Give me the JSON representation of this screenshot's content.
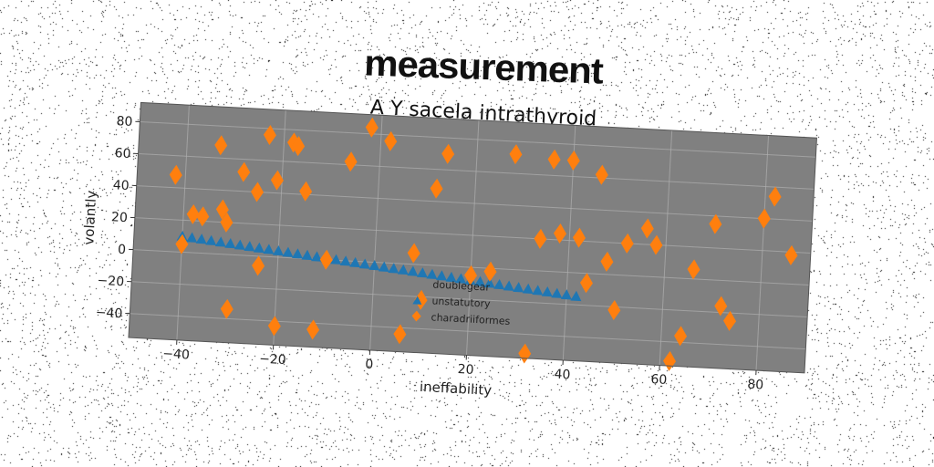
{
  "title": "measurement",
  "subtitle": "A Y sacela intrathyroid",
  "colors": {
    "plot_bg": "#808080",
    "grid": "#b0b0b0",
    "series_blue": "#1f77b4",
    "series_orange": "#ff7f0e",
    "text": "#222222"
  },
  "chart_data": {
    "type": "scatter",
    "xlabel": "ineffability",
    "ylabel": "volantly",
    "xlim": [
      -50,
      90
    ],
    "ylim": [
      -55,
      92
    ],
    "xticks": [
      "-40",
      "-20",
      "0",
      "20",
      "40",
      "60",
      "80"
    ],
    "yticks": [
      "-40",
      "-20",
      "0",
      "20",
      "40",
      "60",
      "80"
    ],
    "grid": true,
    "legend_position": "lower center",
    "series": [
      {
        "name": "doublegear",
        "marker": "none",
        "x": [],
        "y": []
      },
      {
        "name": "unstatutory",
        "marker": "triangle",
        "color": "#1f77b4",
        "x": [
          -40,
          -38,
          -36,
          -34,
          -32,
          -30,
          -28,
          -26,
          -24,
          -22,
          -20,
          -18,
          -16,
          -14,
          -12,
          -10,
          -8,
          -6,
          -4,
          -2,
          0,
          2,
          4,
          6,
          8,
          10,
          12,
          14,
          16,
          18,
          20,
          22,
          24,
          26,
          28,
          30,
          32,
          34,
          36,
          38,
          40,
          42
        ],
        "y": [
          10,
          9.4,
          8.8,
          8.2,
          7.6,
          7,
          6.4,
          5.8,
          5.2,
          4.6,
          4,
          3.4,
          2.8,
          2.2,
          1.6,
          1,
          0.4,
          -0.2,
          -0.8,
          -1.4,
          -2,
          -2.6,
          -3.2,
          -3.8,
          -4.4,
          -5,
          -5.6,
          -6.2,
          -6.8,
          -7.4,
          -8,
          -8.6,
          -9.2,
          -9.8,
          -10.4,
          -11,
          -11.6,
          -12.2,
          -12.8,
          -13.4,
          -14,
          -14.6
        ]
      },
      {
        "name": "charadriiformes",
        "marker": "diamond",
        "color": "#ff7f0e",
        "x": [
          -42,
          -40,
          -38,
          -36,
          -33,
          -32,
          -31,
          -30,
          -28,
          -25,
          -24,
          -23,
          -21,
          -20,
          -18,
          -17,
          -15,
          -12,
          -10,
          -6,
          -2,
          2,
          6,
          8,
          10,
          12,
          14,
          20,
          24,
          28,
          32,
          34,
          36,
          38,
          40,
          42,
          44,
          46,
          48,
          50,
          52,
          56,
          58,
          62,
          64,
          66,
          70,
          72,
          74,
          80,
          82,
          86
        ],
        "y": [
          48,
          5,
          24,
          23,
          68,
          28,
          20,
          -34,
          52,
          40,
          -6,
          76,
          48,
          -43,
          72,
          70,
          42,
          -44,
          0,
          62,
          84,
          76,
          -44,
          7,
          -22,
          48,
          70,
          -5,
          -2,
          72,
          -52,
          20,
          70,
          24,
          70,
          22,
          -6,
          62,
          8,
          -22,
          20,
          30,
          20,
          -52,
          -36,
          6,
          35,
          -16,
          -25,
          40,
          54,
          18
        ]
      }
    ]
  }
}
